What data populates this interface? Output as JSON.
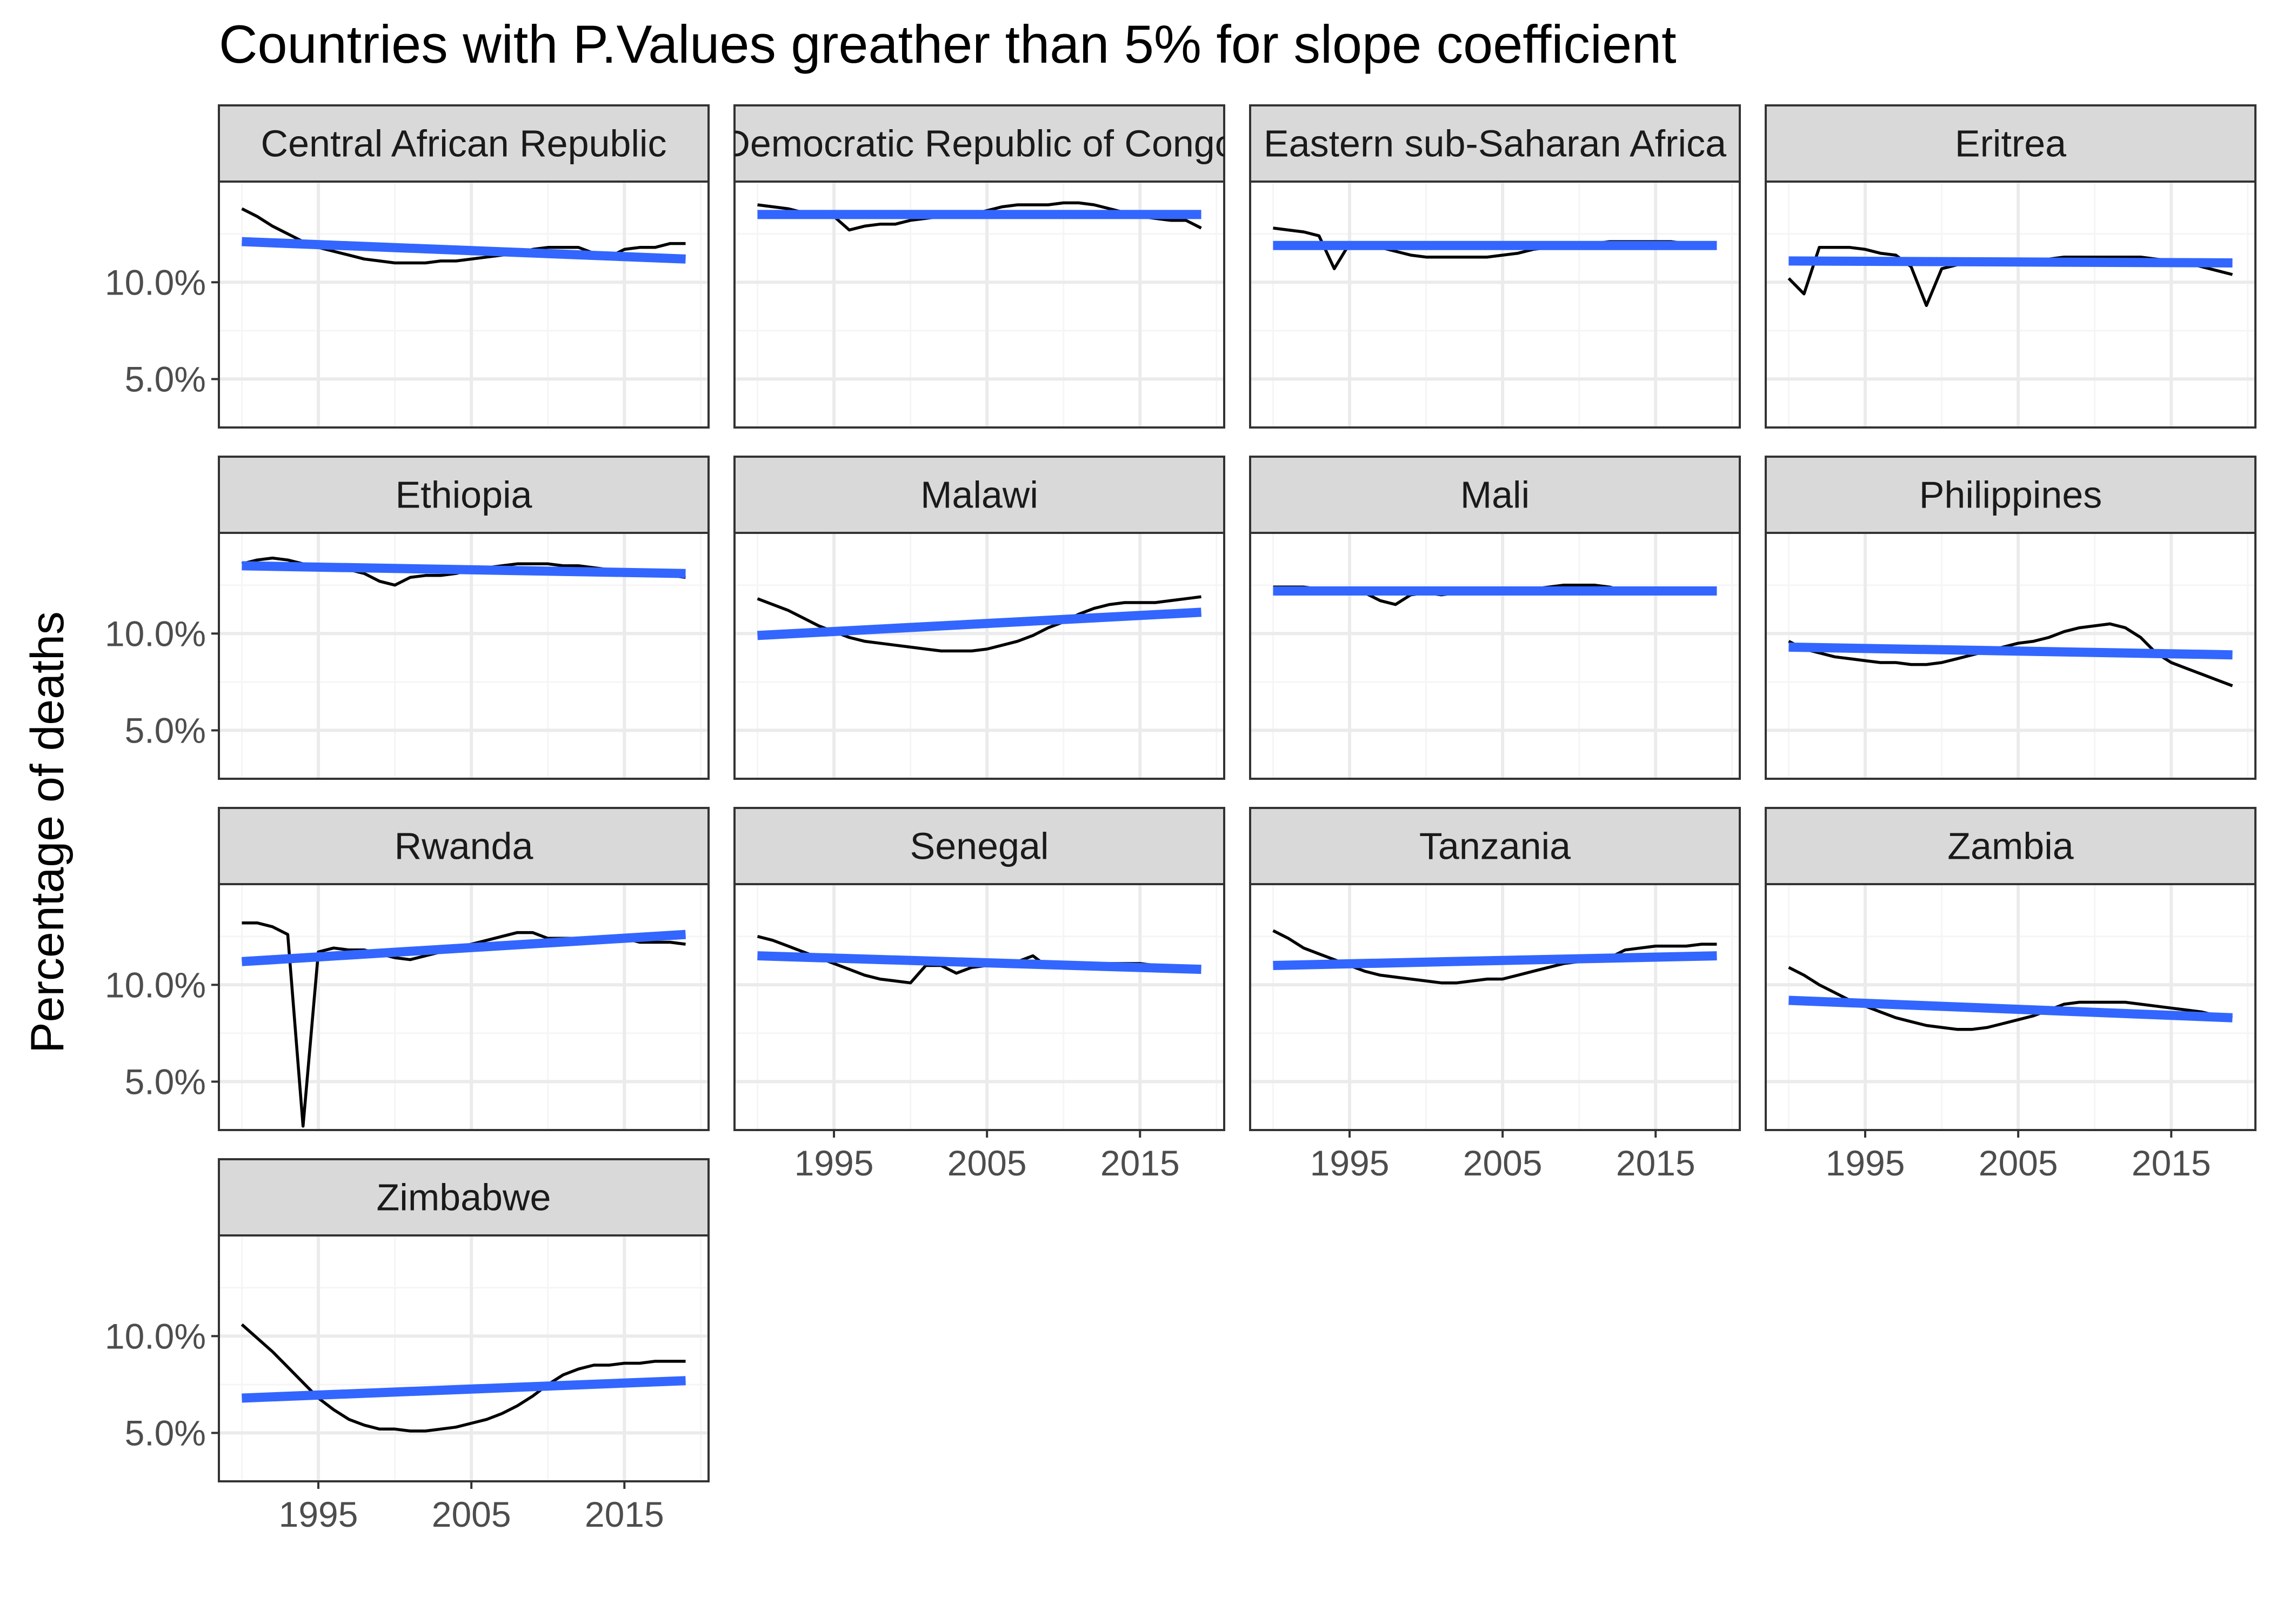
{
  "chart_data": {
    "type": "line",
    "title": "Countries with P.Values greather than 5% for slope coefficient",
    "xlabel": "",
    "ylabel": "Percentage of deaths",
    "x_ticks": [
      1995,
      2005,
      2015
    ],
    "x_tick_labels": [
      "1995",
      "2005",
      "2015"
    ],
    "y_ticks": [
      0.05,
      0.1
    ],
    "y_tick_labels": [
      "5.0%",
      "10.0%"
    ],
    "xlim": [
      1988.5,
      2020.5
    ],
    "ylim": [
      0.025,
      0.152
    ],
    "grid": true,
    "years": [
      1990,
      1991,
      1992,
      1993,
      1994,
      1995,
      1996,
      1997,
      1998,
      1999,
      2000,
      2001,
      2002,
      2003,
      2004,
      2005,
      2006,
      2007,
      2008,
      2009,
      2010,
      2011,
      2012,
      2013,
      2014,
      2015,
      2016,
      2017,
      2018,
      2019
    ],
    "facets": [
      {
        "label": "Central African Republic",
        "values": [
          0.138,
          0.134,
          0.129,
          0.125,
          0.121,
          0.118,
          0.116,
          0.114,
          0.112,
          0.111,
          0.11,
          0.11,
          0.11,
          0.111,
          0.111,
          0.112,
          0.113,
          0.114,
          0.115,
          0.117,
          0.118,
          0.118,
          0.118,
          0.115,
          0.113,
          0.117,
          0.118,
          0.118,
          0.12,
          0.12
        ],
        "fit": [
          0.121,
          0.112
        ]
      },
      {
        "label": "Democratic Republic of Congo",
        "values": [
          0.14,
          0.139,
          0.138,
          0.136,
          0.135,
          0.134,
          0.127,
          0.129,
          0.13,
          0.13,
          0.132,
          0.133,
          0.134,
          0.134,
          0.135,
          0.137,
          0.139,
          0.14,
          0.14,
          0.14,
          0.141,
          0.141,
          0.14,
          0.138,
          0.136,
          0.134,
          0.133,
          0.132,
          0.132,
          0.128
        ],
        "fit": [
          0.135,
          0.135
        ]
      },
      {
        "label": "Eastern sub-Saharan Africa",
        "values": [
          0.128,
          0.127,
          0.126,
          0.124,
          0.107,
          0.12,
          0.119,
          0.118,
          0.116,
          0.114,
          0.113,
          0.113,
          0.113,
          0.113,
          0.113,
          0.114,
          0.115,
          0.117,
          0.118,
          0.118,
          0.119,
          0.12,
          0.121,
          0.121,
          0.121,
          0.121,
          0.121,
          0.12,
          0.12,
          0.12
        ],
        "fit": [
          0.119,
          0.119
        ]
      },
      {
        "label": "Eritrea",
        "values": [
          0.102,
          0.094,
          0.118,
          0.118,
          0.118,
          0.117,
          0.115,
          0.114,
          0.108,
          0.088,
          0.107,
          0.109,
          0.111,
          0.111,
          0.111,
          0.111,
          0.111,
          0.112,
          0.113,
          0.113,
          0.113,
          0.113,
          0.113,
          0.113,
          0.112,
          0.111,
          0.11,
          0.108,
          0.106,
          0.104
        ],
        "fit": [
          0.111,
          0.11
        ]
      },
      {
        "label": "Ethiopia",
        "values": [
          0.136,
          0.138,
          0.139,
          0.138,
          0.136,
          0.135,
          0.134,
          0.133,
          0.131,
          0.127,
          0.125,
          0.129,
          0.13,
          0.13,
          0.131,
          0.133,
          0.134,
          0.135,
          0.136,
          0.136,
          0.136,
          0.135,
          0.135,
          0.134,
          0.133,
          0.132,
          0.132,
          0.131,
          0.13,
          0.129
        ],
        "fit": [
          0.135,
          0.131
        ]
      },
      {
        "label": "Malawi",
        "values": [
          0.118,
          0.115,
          0.112,
          0.108,
          0.104,
          0.101,
          0.098,
          0.096,
          0.095,
          0.094,
          0.093,
          0.092,
          0.091,
          0.091,
          0.091,
          0.092,
          0.094,
          0.096,
          0.099,
          0.103,
          0.106,
          0.11,
          0.113,
          0.115,
          0.116,
          0.116,
          0.116,
          0.117,
          0.118,
          0.119
        ],
        "fit": [
          0.099,
          0.111
        ]
      },
      {
        "label": "Mali",
        "values": [
          0.124,
          0.124,
          0.124,
          0.123,
          0.123,
          0.122,
          0.121,
          0.117,
          0.115,
          0.12,
          0.121,
          0.12,
          0.121,
          0.122,
          0.122,
          0.122,
          0.122,
          0.123,
          0.124,
          0.125,
          0.125,
          0.125,
          0.124,
          0.122,
          0.121,
          0.121,
          0.122,
          0.122,
          0.123,
          0.123
        ],
        "fit": [
          0.122,
          0.122
        ]
      },
      {
        "label": "Philippines",
        "values": [
          0.096,
          0.092,
          0.09,
          0.088,
          0.087,
          0.086,
          0.085,
          0.085,
          0.084,
          0.084,
          0.085,
          0.087,
          0.089,
          0.091,
          0.093,
          0.095,
          0.096,
          0.098,
          0.101,
          0.103,
          0.104,
          0.105,
          0.103,
          0.098,
          0.09,
          0.085,
          0.082,
          0.079,
          0.076,
          0.073
        ],
        "fit": [
          0.093,
          0.089
        ]
      },
      {
        "label": "Rwanda",
        "values": [
          0.132,
          0.132,
          0.13,
          0.126,
          0.027,
          0.117,
          0.119,
          0.118,
          0.118,
          0.116,
          0.114,
          0.113,
          0.115,
          0.117,
          0.119,
          0.121,
          0.123,
          0.125,
          0.127,
          0.127,
          0.124,
          0.124,
          0.124,
          0.124,
          0.124,
          0.124,
          0.122,
          0.122,
          0.122,
          0.121
        ],
        "fit": [
          0.112,
          0.126
        ]
      },
      {
        "label": "Senegal",
        "values": [
          0.125,
          0.123,
          0.12,
          0.117,
          0.114,
          0.111,
          0.108,
          0.105,
          0.103,
          0.102,
          0.101,
          0.11,
          0.11,
          0.106,
          0.109,
          0.11,
          0.11,
          0.112,
          0.115,
          0.109,
          0.111,
          0.11,
          0.11,
          0.111,
          0.111,
          0.111,
          0.11,
          0.109,
          0.108,
          0.108
        ],
        "fit": [
          0.115,
          0.108
        ]
      },
      {
        "label": "Tanzania",
        "values": [
          0.128,
          0.124,
          0.119,
          0.116,
          0.113,
          0.11,
          0.107,
          0.105,
          0.104,
          0.103,
          0.102,
          0.101,
          0.101,
          0.102,
          0.103,
          0.103,
          0.105,
          0.107,
          0.109,
          0.111,
          0.112,
          0.113,
          0.114,
          0.118,
          0.119,
          0.12,
          0.12,
          0.12,
          0.121,
          0.121
        ],
        "fit": [
          0.11,
          0.115
        ]
      },
      {
        "label": "Zambia",
        "values": [
          0.109,
          0.105,
          0.1,
          0.096,
          0.092,
          0.089,
          0.086,
          0.083,
          0.081,
          0.079,
          0.078,
          0.077,
          0.077,
          0.078,
          0.08,
          0.082,
          0.084,
          0.087,
          0.09,
          0.091,
          0.091,
          0.091,
          0.091,
          0.09,
          0.089,
          0.088,
          0.087,
          0.086,
          0.084,
          0.083
        ],
        "fit": [
          0.092,
          0.083
        ]
      },
      {
        "label": "Zimbabwe",
        "values": [
          0.106,
          0.099,
          0.092,
          0.084,
          0.076,
          0.068,
          0.062,
          0.057,
          0.054,
          0.052,
          0.052,
          0.051,
          0.051,
          0.052,
          0.053,
          0.055,
          0.057,
          0.06,
          0.064,
          0.069,
          0.075,
          0.08,
          0.083,
          0.085,
          0.085,
          0.086,
          0.086,
          0.087,
          0.087,
          0.087
        ],
        "fit": [
          0.068,
          0.077
        ]
      }
    ],
    "colors": {
      "line": "#000000",
      "fit": "#3366FF",
      "strip_fill": "#D9D9D9",
      "panel_border": "#333333",
      "grid_major": "#EBEBEB",
      "grid_minor": "#F5F5F5",
      "tick_text": "#4D4D4D"
    }
  }
}
